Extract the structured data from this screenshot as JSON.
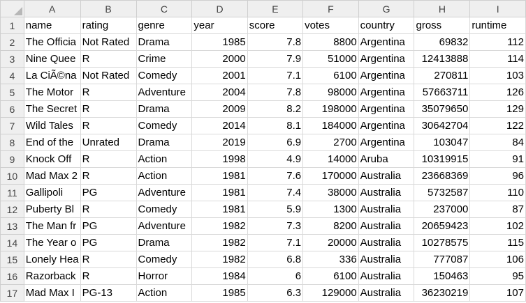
{
  "columns": [
    "A",
    "B",
    "C",
    "D",
    "E",
    "F",
    "G",
    "H",
    "I"
  ],
  "rows": [
    {
      "n": "1",
      "cells": [
        "name",
        "rating",
        "genre",
        "year",
        "score",
        "votes",
        "country",
        "gross",
        "runtime"
      ]
    },
    {
      "n": "2",
      "cells": [
        "The Officia",
        "Not Rated",
        "Drama",
        "1985",
        "7.8",
        "8800",
        "Argentina",
        "69832",
        "112"
      ]
    },
    {
      "n": "3",
      "cells": [
        "Nine Quee",
        "R",
        "Crime",
        "2000",
        "7.9",
        "51000",
        "Argentina",
        "12413888",
        "114"
      ]
    },
    {
      "n": "4",
      "cells": [
        "La CiÃ©na",
        "Not Rated",
        "Comedy",
        "2001",
        "7.1",
        "6100",
        "Argentina",
        "270811",
        "103"
      ]
    },
    {
      "n": "5",
      "cells": [
        "The Motor",
        "R",
        "Adventure",
        "2004",
        "7.8",
        "98000",
        "Argentina",
        "57663711",
        "126"
      ]
    },
    {
      "n": "6",
      "cells": [
        "The Secret",
        "R",
        "Drama",
        "2009",
        "8.2",
        "198000",
        "Argentina",
        "35079650",
        "129"
      ]
    },
    {
      "n": "7",
      "cells": [
        "Wild Tales",
        "R",
        "Comedy",
        "2014",
        "8.1",
        "184000",
        "Argentina",
        "30642704",
        "122"
      ]
    },
    {
      "n": "8",
      "cells": [
        "End of the",
        "Unrated",
        "Drama",
        "2019",
        "6.9",
        "2700",
        "Argentina",
        "103047",
        "84"
      ]
    },
    {
      "n": "9",
      "cells": [
        "Knock Off",
        "R",
        "Action",
        "1998",
        "4.9",
        "14000",
        "Aruba",
        "10319915",
        "91"
      ]
    },
    {
      "n": "10",
      "cells": [
        "Mad Max 2",
        "R",
        "Action",
        "1981",
        "7.6",
        "170000",
        "Australia",
        "23668369",
        "96"
      ]
    },
    {
      "n": "11",
      "cells": [
        "Gallipoli",
        "PG",
        "Adventure",
        "1981",
        "7.4",
        "38000",
        "Australia",
        "5732587",
        "110"
      ]
    },
    {
      "n": "12",
      "cells": [
        "Puberty Bl",
        "R",
        "Comedy",
        "1981",
        "5.9",
        "1300",
        "Australia",
        "237000",
        "87"
      ]
    },
    {
      "n": "13",
      "cells": [
        "The Man fr",
        "PG",
        "Adventure",
        "1982",
        "7.3",
        "8200",
        "Australia",
        "20659423",
        "102"
      ]
    },
    {
      "n": "14",
      "cells": [
        "The Year o",
        "PG",
        "Drama",
        "1982",
        "7.1",
        "20000",
        "Australia",
        "10278575",
        "115"
      ]
    },
    {
      "n": "15",
      "cells": [
        "Lonely Hea",
        "R",
        "Comedy",
        "1982",
        "6.8",
        "336",
        "Australia",
        "777087",
        "106"
      ]
    },
    {
      "n": "16",
      "cells": [
        "Razorback",
        "R",
        "Horror",
        "1984",
        "6",
        "6100",
        "Australia",
        "150463",
        "95"
      ]
    },
    {
      "n": "17",
      "cells": [
        "Mad Max I",
        "PG-13",
        "Action",
        "1985",
        "6.3",
        "129000",
        "Australia",
        "36230219",
        "107"
      ]
    }
  ]
}
